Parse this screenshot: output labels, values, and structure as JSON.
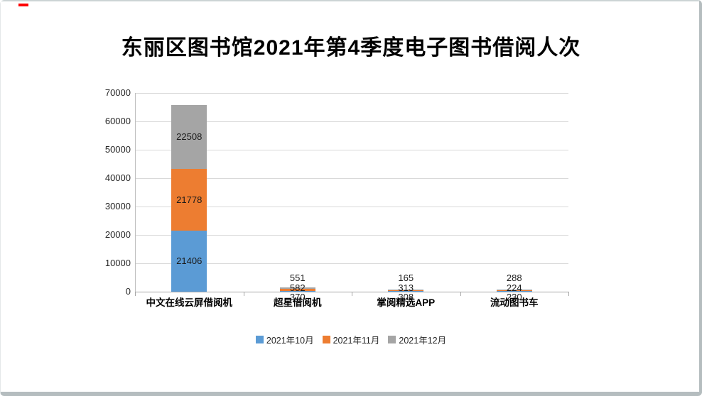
{
  "page": {
    "title": "东丽区图书馆2021年第4季度电子图书借阅人次"
  },
  "chart_data": {
    "type": "bar",
    "subtype": "stacked-vertical",
    "title": "东丽区图书馆2021年第4季度电子图书借阅人次",
    "categories": [
      "中文在线云屏借阅机",
      "超星借阅机",
      "掌阅精选APP",
      "流动图书车"
    ],
    "series": [
      {
        "name": "2021年10月",
        "color": "#5B9BD5",
        "values": [
          21406,
          370,
          308,
          230
        ]
      },
      {
        "name": "2021年11月",
        "color": "#ED7D31",
        "values": [
          21778,
          582,
          313,
          224
        ]
      },
      {
        "name": "2021年12月",
        "color": "#A5A5A5",
        "values": [
          22508,
          551,
          165,
          288
        ]
      }
    ],
    "xlabel": "",
    "ylabel": "",
    "ylim": [
      0,
      70000
    ],
    "ytick_step": 10000,
    "ytick_labels": [
      "0",
      "10000",
      "20000",
      "30000",
      "40000",
      "50000",
      "60000",
      "70000"
    ],
    "grid": true,
    "data_labels": true,
    "legend_position": "bottom",
    "axis_color": "#a6a6a6",
    "gridline_color": "#d9d9d9"
  }
}
